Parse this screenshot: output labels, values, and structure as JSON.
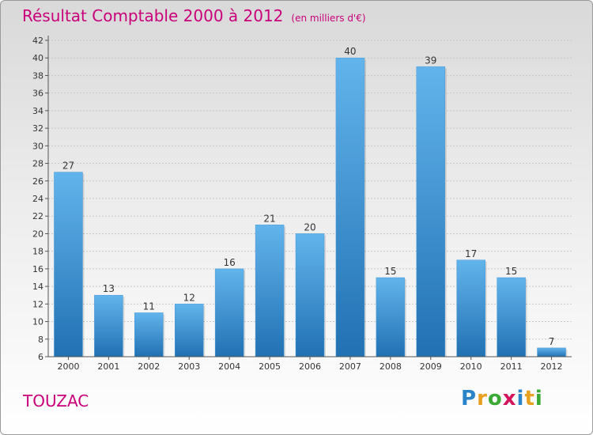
{
  "title": "Résultat Comptable 2000 à 2012",
  "unit": "(en milliers d'€)",
  "commune": "TOUZAC",
  "logo": "Proxiti",
  "colors": {
    "accent": "#c9007a",
    "bar_top": "#5fb1ea",
    "bar_bottom": "#2273b5"
  },
  "chart_data": {
    "type": "bar",
    "title": "Résultat Comptable 2000 à 2012",
    "xlabel": "",
    "ylabel": "",
    "categories": [
      "2000",
      "2001",
      "2002",
      "2003",
      "2004",
      "2005",
      "2006",
      "2007",
      "2008",
      "2009",
      "2010",
      "2011",
      "2012"
    ],
    "values": [
      27,
      13,
      11,
      12,
      16,
      21,
      20,
      40,
      15,
      39,
      17,
      15,
      7
    ],
    "ylim": [
      6,
      42
    ],
    "yticks": [
      6,
      8,
      10,
      12,
      14,
      16,
      18,
      20,
      22,
      24,
      26,
      28,
      30,
      32,
      34,
      36,
      38,
      40,
      42
    ],
    "grid": true
  }
}
